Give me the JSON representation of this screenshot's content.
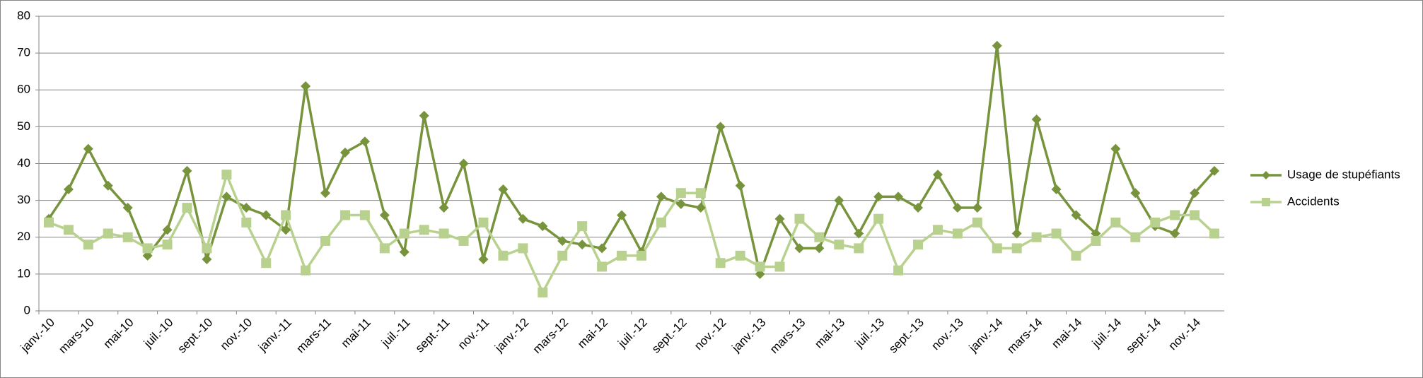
{
  "chart_data": {
    "type": "line",
    "categories": [
      "janv.-10",
      null,
      "mars-10",
      null,
      "mai-10",
      null,
      "juil.-10",
      null,
      "sept.-10",
      null,
      "nov.-10",
      null,
      "janv.-11",
      null,
      "mars-11",
      null,
      "mai-11",
      null,
      "juil.-11",
      null,
      "sept.-11",
      null,
      "nov.-11",
      null,
      "janv.-12",
      null,
      "mars-12",
      null,
      "mai-12",
      null,
      "juil.-12",
      null,
      "sept.-12",
      null,
      "nov.-12",
      null,
      "janv.-13",
      null,
      "mars-13",
      null,
      "mai-13",
      null,
      "juil.-13",
      null,
      "sept.-13",
      null,
      "nov.-13",
      null,
      "janv.-14",
      null,
      "mars-14",
      null,
      "mai-14",
      null,
      "juil.-14",
      null,
      "sept.-14",
      null,
      "nov.-14",
      null
    ],
    "series": [
      {
        "name": "Usage de stupéfiants",
        "color": "#77933c",
        "marker": "diamond",
        "values": [
          25,
          33,
          44,
          34,
          28,
          15,
          22,
          38,
          14,
          31,
          28,
          26,
          22,
          61,
          32,
          43,
          46,
          26,
          16,
          53,
          28,
          40,
          14,
          33,
          25,
          23,
          19,
          18,
          17,
          26,
          16,
          31,
          29,
          28,
          50,
          34,
          10,
          25,
          17,
          17,
          30,
          21,
          31,
          31,
          28,
          37,
          28,
          28,
          72,
          21,
          52,
          33,
          26,
          21,
          44,
          32,
          23,
          21,
          32,
          38
        ]
      },
      {
        "name": "Accidents",
        "color": "#b9d18e",
        "marker": "square",
        "values": [
          24,
          22,
          18,
          21,
          20,
          17,
          18,
          28,
          17,
          37,
          24,
          13,
          26,
          11,
          19,
          26,
          26,
          17,
          21,
          22,
          21,
          19,
          24,
          15,
          17,
          5,
          15,
          23,
          12,
          15,
          15,
          24,
          32,
          32,
          13,
          15,
          12,
          12,
          25,
          20,
          18,
          17,
          25,
          11,
          18,
          22,
          21,
          24,
          17,
          17,
          20,
          21,
          15,
          19,
          24,
          20,
          24,
          26,
          26,
          21
        ]
      }
    ],
    "ylim": [
      0,
      80
    ],
    "yticks": [
      0,
      10,
      20,
      30,
      40,
      50,
      60,
      70,
      80
    ],
    "grid": true,
    "legend": "right"
  }
}
